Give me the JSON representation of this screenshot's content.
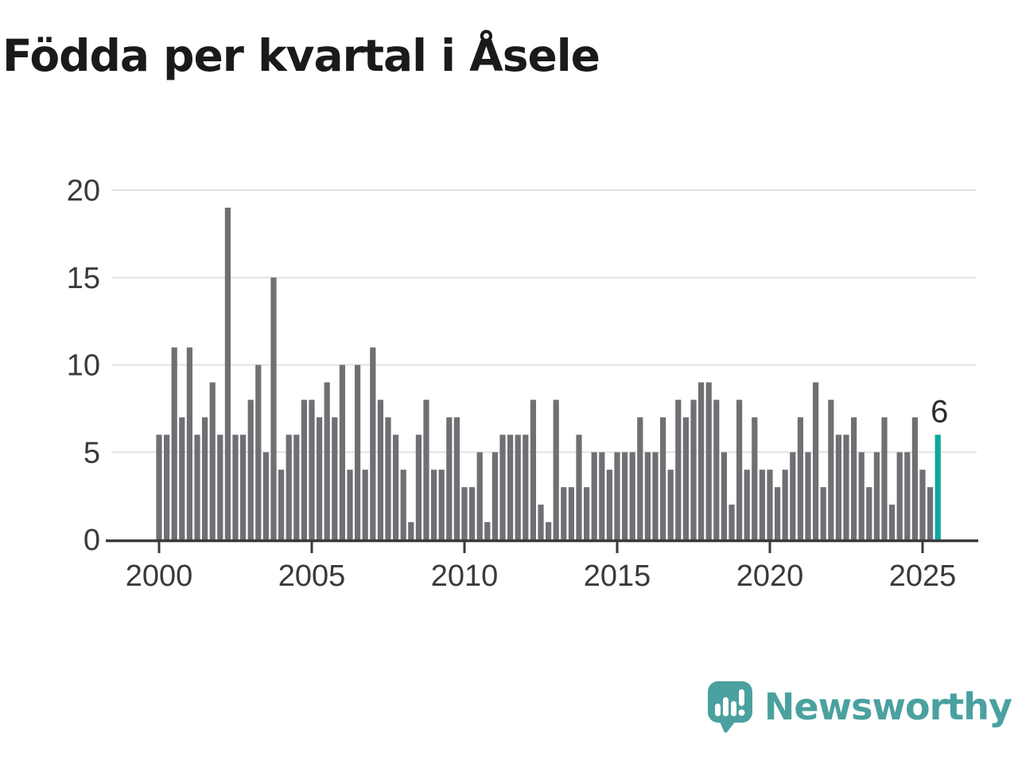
{
  "title": "Födda per kvartal i Åsele",
  "branding": {
    "logo_text": "Newsworthy",
    "logo_icon": "newsworthy-speech-bubble-bar-chart-icon"
  },
  "colors": {
    "bar": "#6f6f74",
    "highlight": "#0ca89e",
    "grid": "#e2e2e2",
    "axis": "#3a3a3a",
    "tick_label": "#3a3a3a",
    "annotation": "#2b2b2b",
    "title": "#1a1a1a",
    "logo": "#4aa19f"
  },
  "chart_data": {
    "type": "bar",
    "title": "Födda per kvartal i Åsele",
    "frequency": "quarterly",
    "x_start": "2000Q1",
    "x_end": "2025Q3",
    "values": [
      6,
      6,
      11,
      7,
      11,
      6,
      7,
      9,
      6,
      19,
      6,
      6,
      8,
      10,
      5,
      15,
      4,
      6,
      6,
      8,
      8,
      7,
      9,
      7,
      10,
      4,
      10,
      4,
      11,
      8,
      7,
      6,
      4,
      1,
      6,
      8,
      4,
      4,
      7,
      7,
      3,
      3,
      5,
      1,
      5,
      6,
      6,
      6,
      6,
      8,
      2,
      1,
      8,
      3,
      3,
      6,
      3,
      5,
      5,
      4,
      5,
      5,
      5,
      7,
      5,
      5,
      7,
      4,
      8,
      7,
      8,
      9,
      9,
      8,
      5,
      2,
      8,
      4,
      7,
      4,
      4,
      3,
      4,
      5,
      7,
      5,
      9,
      3,
      8,
      6,
      6,
      7,
      5,
      3,
      5,
      7,
      2,
      5,
      5,
      7,
      4,
      3,
      6
    ],
    "highlight_last_bar": true,
    "last_value_label": "6",
    "x_tick_years": [
      2000,
      2005,
      2010,
      2015,
      2020,
      2025
    ],
    "y_ticks": [
      0,
      5,
      10,
      15,
      20
    ],
    "ylim": [
      0,
      20
    ],
    "grid": "horizontal",
    "legend": "none"
  }
}
